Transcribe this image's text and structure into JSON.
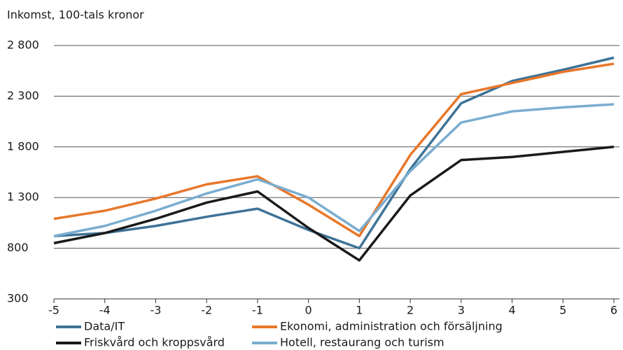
{
  "chart_data": {
    "type": "line",
    "y_axis_label": "Inkomst, 100-tals kronor",
    "x": [
      -5,
      -4,
      -3,
      -2,
      -1,
      0,
      1,
      2,
      3,
      4,
      5,
      6
    ],
    "xlim": [
      -5,
      6
    ],
    "xticks": [
      -5,
      -4,
      -3,
      -2,
      -1,
      0,
      1,
      2,
      3,
      4,
      5,
      6
    ],
    "ylim": [
      300,
      2800
    ],
    "yticks": [
      300,
      800,
      {
        "value": 1300,
        "label": "1 300"
      },
      {
        "value": 1800,
        "label": "1 800"
      },
      {
        "value": 2300,
        "label": "2 300"
      },
      {
        "value": 2800,
        "label": "2 800"
      }
    ],
    "grid": true,
    "legend": "bottom",
    "series": [
      {
        "name": "Data/IT",
        "color": "#3f7397",
        "values": [
          920,
          950,
          1020,
          1110,
          1190,
          980,
          800,
          1580,
          2230,
          2450,
          2560,
          2680
        ]
      },
      {
        "name": "Ekonomi, administration och försäljning",
        "color": "#e8772a",
        "values": [
          1090,
          1170,
          1290,
          1430,
          1510,
          1230,
          920,
          1720,
          2320,
          2430,
          2540,
          2620
        ]
      },
      {
        "name": "Friskvård och kroppsvård",
        "color": "#1a1a1a",
        "values": [
          850,
          950,
          1090,
          1250,
          1360,
          1000,
          680,
          1320,
          1670,
          1700,
          1750,
          1800
        ]
      },
      {
        "name": "Hotell, restaurang och turism",
        "color": "#7aadd0",
        "values": [
          920,
          1020,
          1170,
          1340,
          1480,
          1300,
          970,
          1560,
          2040,
          2150,
          2190,
          2220
        ]
      }
    ]
  }
}
